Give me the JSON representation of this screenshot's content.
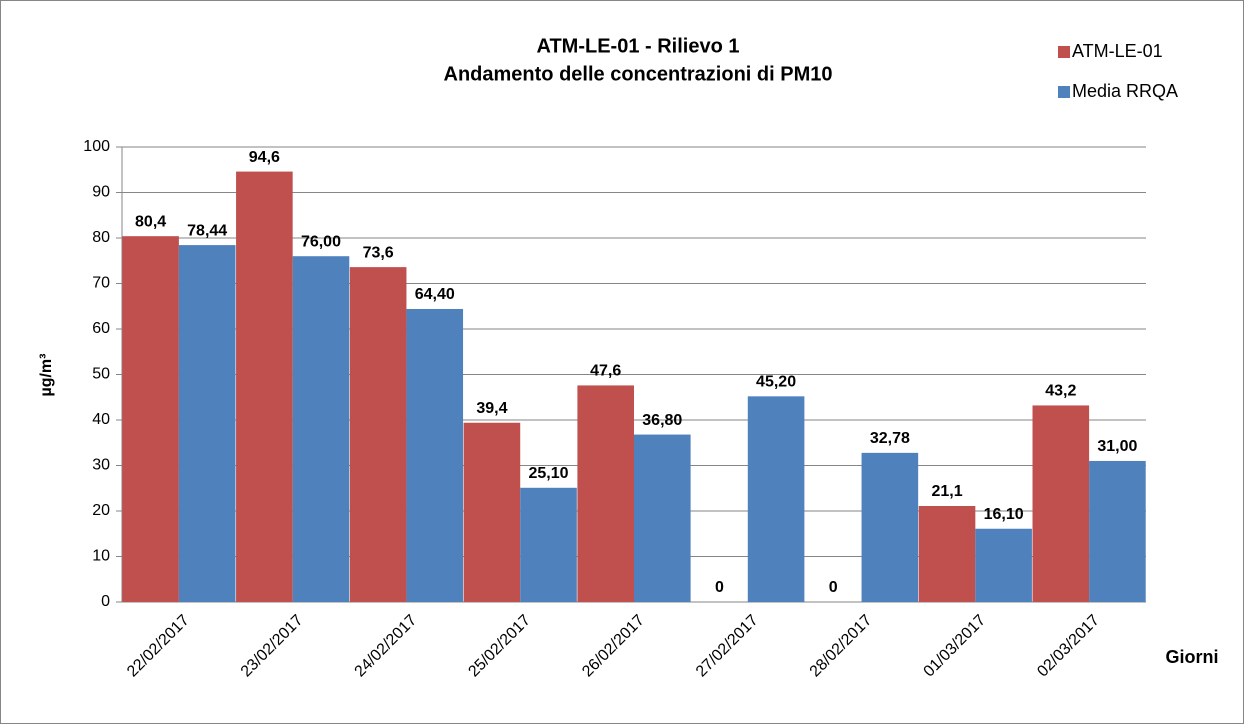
{
  "chart_data": {
    "type": "bar",
    "title": [
      "ATM-LE-01 - Rilievo 1",
      "Andamento delle concentrazioni di PM10"
    ],
    "y_label": "µg/m³",
    "x_label": "Giorni",
    "categories": [
      "22/02/2017",
      "23/02/2017",
      "24/02/2017",
      "25/02/2017",
      "26/02/2017",
      "27/02/2017",
      "28/02/2017",
      "01/03/2017",
      "02/03/2017"
    ],
    "series": [
      {
        "name": "ATM-LE-01",
        "color": "#c0504d",
        "values": [
          80.4,
          94.6,
          73.6,
          39.4,
          47.6,
          0,
          0,
          21.1,
          43.2
        ],
        "value_labels": [
          "80,4",
          "94,6",
          "73,6",
          "39,4",
          "47,6",
          "0",
          "0",
          "21,1",
          "43,2"
        ]
      },
      {
        "name": "Media RRQA",
        "color": "#4f81bd",
        "values": [
          78.44,
          76.0,
          64.4,
          25.1,
          36.8,
          45.2,
          32.78,
          16.1,
          31.0
        ],
        "value_labels": [
          "78,44",
          "76,00",
          "64,40",
          "25,10",
          "36,80",
          "45,20",
          "32,78",
          "16,10",
          "31,00"
        ]
      }
    ],
    "ylim": [
      0,
      100
    ],
    "yticks": [
      0,
      10,
      20,
      30,
      40,
      50,
      60,
      70,
      80,
      90,
      100
    ],
    "grid": true,
    "legend": "top-right"
  }
}
